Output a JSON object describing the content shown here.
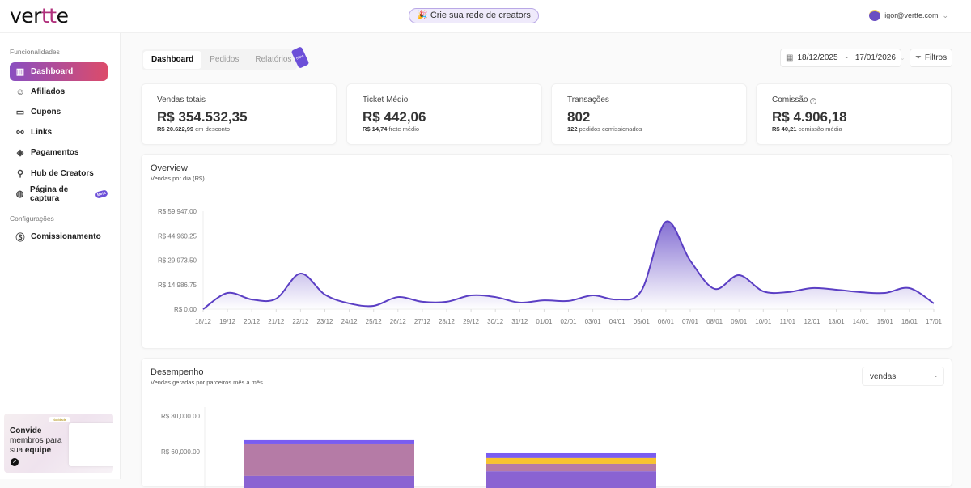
{
  "header": {
    "logo": "vertte",
    "promo": "🎉 Crie sua rede de creators",
    "user_email": "igor@vertte.com"
  },
  "sidebar": {
    "section1": "Funcionalidades",
    "items": [
      {
        "label": "Dashboard",
        "icon": "chart-clipboard-icon",
        "active": true
      },
      {
        "label": "Afiliados",
        "icon": "smile-icon"
      },
      {
        "label": "Cupons",
        "icon": "ticket-icon"
      },
      {
        "label": "Links",
        "icon": "link-icon"
      },
      {
        "label": "Pagamentos",
        "icon": "diamond-icon"
      },
      {
        "label": "Hub de Creators",
        "icon": "search-heart-icon"
      },
      {
        "label": "Página de captura",
        "icon": "globe-icon",
        "badge": "Beta"
      }
    ],
    "section2": "Configurações",
    "items2": [
      {
        "label": "Comissionamento",
        "icon": "dollar-circle-icon"
      }
    ],
    "promo": {
      "line1": "Convide",
      "line2": "membros para",
      "line3a": "sua ",
      "line3b": "equipe",
      "tag": "Novidade"
    }
  },
  "tabs": [
    {
      "label": "Dashboard",
      "active": true
    },
    {
      "label": "Pedidos"
    },
    {
      "label": "Relatórios",
      "badge": "New"
    }
  ],
  "date_range": {
    "start": "18/12/2025",
    "sep": "-",
    "end": "17/01/2026"
  },
  "filters_label": "Filtros",
  "kpis": [
    {
      "label": "Vendas totais",
      "value": "R$ 354.532,35",
      "sub_bold": "R$ 20.622,99",
      "sub": " em desconto"
    },
    {
      "label": "Ticket Médio",
      "value": "R$ 442,06",
      "sub_bold": "R$ 14,74",
      "sub": " frete médio"
    },
    {
      "label": "Transações",
      "value": "802",
      "sub_bold": "122",
      "sub": " pedidos comissionados"
    },
    {
      "label": "Comissão",
      "value": "R$ 4.906,18",
      "sub_bold": "R$ 40,21",
      "sub": " comissão média",
      "help": "?"
    }
  ],
  "chart_data": [
    {
      "type": "area",
      "title": "Overview",
      "subtitle": "Vendas por dia (R$)",
      "ylim": [
        0,
        59947
      ],
      "yticks": [
        "R$ 0.00",
        "R$ 14,986.75",
        "R$ 29,973.50",
        "R$ 44,960.25",
        "R$ 59,947.00"
      ],
      "x": [
        "18/12",
        "19/12",
        "20/12",
        "21/12",
        "22/12",
        "23/12",
        "24/12",
        "25/12",
        "26/12",
        "27/12",
        "28/12",
        "29/12",
        "30/12",
        "31/12",
        "01/01",
        "02/01",
        "03/01",
        "04/01",
        "05/01",
        "06/01",
        "07/01",
        "08/01",
        "09/01",
        "10/01",
        "11/01",
        "12/01",
        "13/01",
        "14/01",
        "15/01",
        "16/01",
        "17/01"
      ],
      "values": [
        0,
        9900,
        5900,
        6400,
        21800,
        8900,
        3500,
        2000,
        7400,
        4500,
        4500,
        8400,
        7400,
        4000,
        5400,
        5000,
        8400,
        5900,
        11400,
        53500,
        29700,
        12400,
        20800,
        10900,
        10400,
        12900,
        11900,
        10400,
        9900,
        12900,
        3500
      ],
      "color": "#5b3fc4",
      "grid": false
    },
    {
      "type": "bar",
      "stacked": true,
      "title": "Desempenho",
      "subtitle": "Vendas geradas por parceiros mês a mês",
      "yticks": [
        "R$ 60,000.00",
        "R$ 80,000.00"
      ],
      "bars": [
        {
          "segments": [
            {
              "from": 64100,
              "to": 66400,
              "color": "#7a5df0"
            },
            {
              "from": 46400,
              "to": 64100,
              "color": "#b57ba6"
            },
            {
              "from": 0,
              "to": 46400,
              "color": "#8a63d2"
            }
          ]
        },
        {
          "segments": [
            {
              "from": 56400,
              "to": 59100,
              "color": "#7a5df0"
            },
            {
              "from": 53200,
              "to": 56400,
              "color": "#f8c32e"
            },
            {
              "from": 49000,
              "to": 53200,
              "color": "#b57ba6"
            },
            {
              "from": 0,
              "to": 49000,
              "color": "#8a63d2"
            }
          ]
        }
      ],
      "metric_select": "vendas"
    }
  ]
}
